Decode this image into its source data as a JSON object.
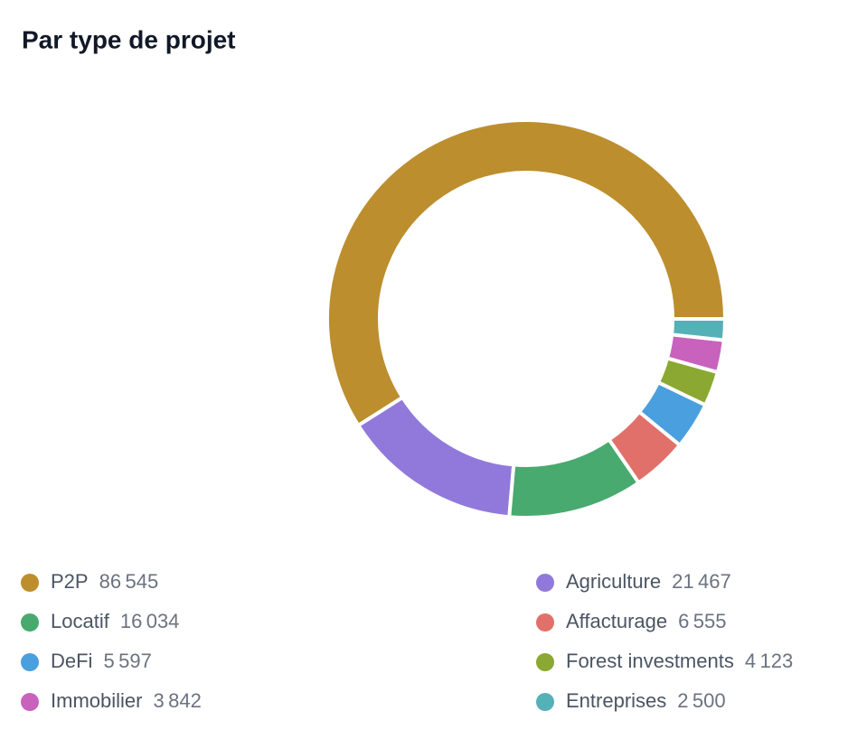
{
  "chart_data": {
    "type": "donut",
    "title": "Par type de projet",
    "categories": [
      "P2P",
      "Agriculture",
      "Locatif",
      "Affacturage",
      "DeFi",
      "Forest investments",
      "Immobilier",
      "Entreprises"
    ],
    "values": [
      86545,
      21467,
      16034,
      6555,
      5597,
      4123,
      3842,
      2500
    ],
    "value_labels": [
      "86 545",
      "21 467",
      "16 034",
      "6 555",
      "5 597",
      "4 123",
      "3 842",
      "2 500"
    ],
    "colors": [
      "#bc8e2e",
      "#9179db",
      "#48aa6e",
      "#e2706a",
      "#4a9fde",
      "#8ba832",
      "#c862bd",
      "#55b1b8"
    ]
  }
}
